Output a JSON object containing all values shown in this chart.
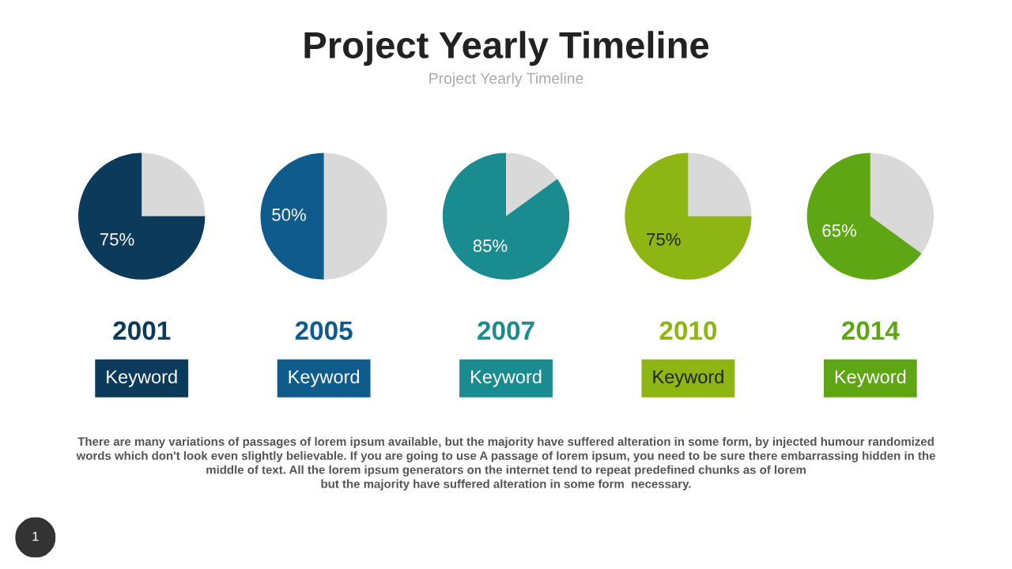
{
  "chart_data": [
    {
      "type": "other",
      "title": "Project Yearly Timeline",
      "subtitle": "Project Yearly Timeline",
      "annotations": [
        "There are many variations of passages of lorem ipsum available, but the majority have suffered alteration in some form, by injected humour randomized\nwords which don't look even slightly believable. If you are going to use A passage of lorem ipsum, you need to be sure there embarrassing hidden in the\nmiddle of text. All the lorem ipsum generators on the internet tend to repeat predefined chunks as of lorem\nbut the majority have suffered alteration in some form  necessary.",
        "1"
      ]
    },
    {
      "type": "pie",
      "title": "2001",
      "categories": [
        null,
        null
      ],
      "values": [
        25,
        75
      ],
      "colors": [
        "#d9d9d9",
        "#0c3a5b"
      ],
      "value_labels": [
        null,
        "75%"
      ],
      "annotations": [
        "Keyword"
      ]
    },
    {
      "type": "pie",
      "title": "2005",
      "categories": [
        null,
        null
      ],
      "values": [
        50,
        50
      ],
      "colors": [
        "#d9d9d9",
        "#0f5b8c"
      ],
      "value_labels": [
        null,
        "50%"
      ],
      "annotations": [
        "Keyword"
      ]
    },
    {
      "type": "pie",
      "title": "2007",
      "categories": [
        null,
        null
      ],
      "values": [
        15,
        85
      ],
      "colors": [
        "#d9d9d9",
        "#1a8b8e"
      ],
      "value_labels": [
        null,
        "85%"
      ],
      "annotations": [
        "Keyword"
      ]
    },
    {
      "type": "pie",
      "title": "2010",
      "categories": [
        null,
        null
      ],
      "values": [
        25,
        75
      ],
      "colors": [
        "#d9d9d9",
        "#8db514"
      ],
      "value_labels": [
        null,
        "75%"
      ],
      "annotations": [
        "Keyword"
      ]
    },
    {
      "type": "pie",
      "title": "2014",
      "categories": [
        null,
        null
      ],
      "values": [
        35,
        65
      ],
      "colors": [
        "#d9d9d9",
        "#5ea614"
      ],
      "value_labels": [
        null,
        "65%"
      ],
      "annotations": [
        "Keyword"
      ]
    }
  ]
}
